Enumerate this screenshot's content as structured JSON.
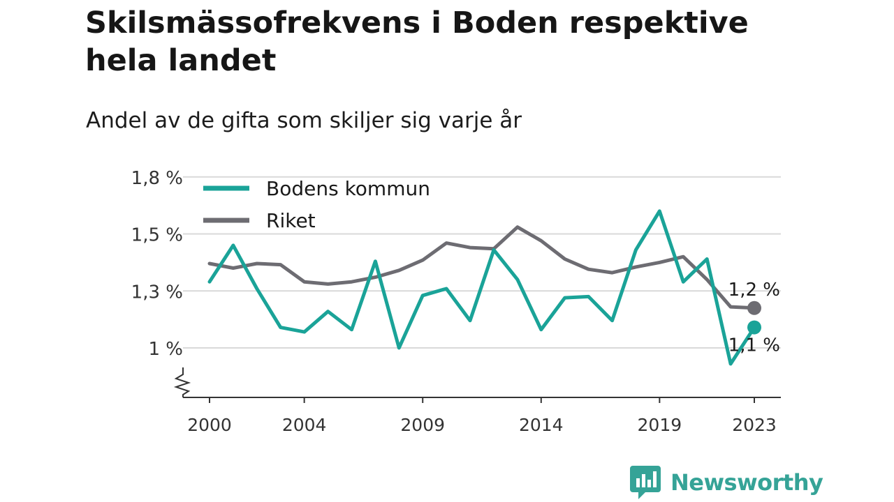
{
  "title": "Skilsmässofrekvens i Boden respektive hela landet",
  "subtitle": "Andel av de gifta som skiljer sig varje år",
  "brand": "Newsworthy",
  "colors": {
    "boden": "#1aa398",
    "riket": "#6d6c72",
    "grid": "#d9d9d9",
    "axis": "#333333"
  },
  "chart_data": {
    "type": "line",
    "x": [
      2000,
      2001,
      2002,
      2003,
      2004,
      2005,
      2006,
      2007,
      2008,
      2009,
      2010,
      2011,
      2012,
      2013,
      2014,
      2015,
      2016,
      2017,
      2018,
      2019,
      2020,
      2021,
      2022,
      2023
    ],
    "x_ticks": [
      2000,
      2004,
      2009,
      2014,
      2019,
      2023
    ],
    "x_tick_labels": [
      "2000",
      "2004",
      "2009",
      "2014",
      "2019",
      "2023"
    ],
    "y_ticks": [
      1.0,
      1.25,
      1.5,
      1.75
    ],
    "y_tick_labels": [
      "1 %",
      "1,3 %",
      "1,5 %",
      "1,8 %"
    ],
    "ylim": [
      0.8,
      1.76
    ],
    "axis_break": true,
    "grid": true,
    "legend_position": "top-left",
    "series": [
      {
        "name": "Bodens kommun",
        "values": [
          1.29,
          1.45,
          1.26,
          1.09,
          1.07,
          1.16,
          1.08,
          1.38,
          1.0,
          1.23,
          1.26,
          1.12,
          1.43,
          1.3,
          1.08,
          1.22,
          1.225,
          1.12,
          1.43,
          1.6,
          1.29,
          1.39,
          0.93,
          1.09
        ],
        "end_label": "1,1 %"
      },
      {
        "name": "Riket",
        "values": [
          1.37,
          1.35,
          1.37,
          1.365,
          1.29,
          1.28,
          1.29,
          1.31,
          1.34,
          1.385,
          1.46,
          1.44,
          1.435,
          1.53,
          1.47,
          1.39,
          1.345,
          1.33,
          1.355,
          1.375,
          1.4,
          1.3,
          1.18,
          1.175
        ],
        "end_label": "1,2 %"
      }
    ]
  }
}
